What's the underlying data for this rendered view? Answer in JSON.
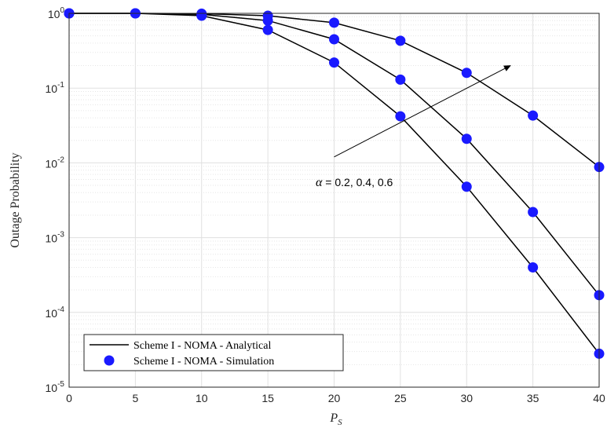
{
  "chart_data": {
    "type": "line",
    "title": "",
    "xlabel_base": "P",
    "xlabel_sub": "S",
    "ylabel": "Outage Probability",
    "x": [
      0,
      5,
      10,
      15,
      20,
      25,
      30,
      35,
      40
    ],
    "xlim": [
      0,
      40
    ],
    "ylim": [
      1e-05,
      1
    ],
    "yscale": "log",
    "xticks": [
      "0",
      "5",
      "10",
      "15",
      "20",
      "25",
      "30",
      "35",
      "40"
    ],
    "yticks": [
      {
        "base": "10",
        "exp": "0",
        "value": 1
      },
      {
        "base": "10",
        "exp": "-1",
        "value": 0.1
      },
      {
        "base": "10",
        "exp": "-2",
        "value": 0.01
      },
      {
        "base": "10",
        "exp": "-3",
        "value": 0.001
      },
      {
        "base": "10",
        "exp": "-4",
        "value": 0.0001
      },
      {
        "base": "10",
        "exp": "-5",
        "value": 1e-05
      }
    ],
    "grid": true,
    "legend_position": "bottom-left",
    "legend": [
      {
        "label": "Scheme I - NOMA - Analytical",
        "style": "line",
        "color": "#000000"
      },
      {
        "label": "Scheme I - NOMA - Simulation",
        "style": "marker",
        "color": "#1a1aff"
      }
    ],
    "series": [
      {
        "values": [
          1,
          1,
          0.93,
          0.6,
          0.22,
          0.042,
          0.0048,
          0.0004,
          2.8e-05
        ]
      },
      {
        "values": [
          1,
          1,
          0.97,
          0.8,
          0.45,
          0.13,
          0.021,
          0.0022,
          0.00017
        ]
      },
      {
        "values": [
          1,
          1,
          0.99,
          0.93,
          0.75,
          0.43,
          0.16,
          0.043,
          0.0088
        ]
      }
    ],
    "annotation": {
      "greek": "α",
      "text": " = 0.2, 0.4, 0.6",
      "arrow_from": [
        20,
        0.012
      ],
      "arrow_to": [
        33.3,
        0.2
      ]
    },
    "line_color": "#000000",
    "marker_color": "#1a1aff"
  }
}
